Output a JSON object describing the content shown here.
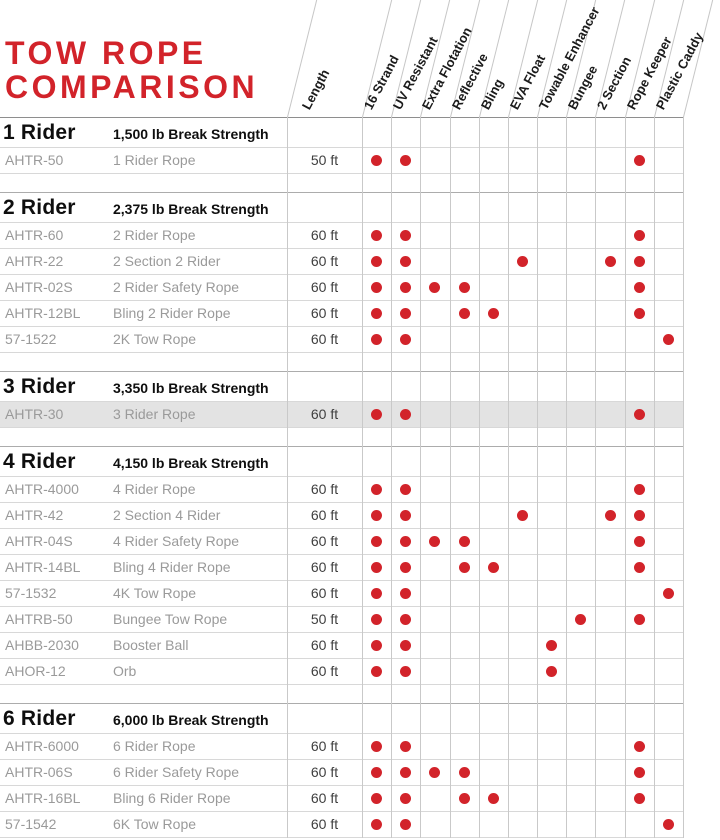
{
  "title": {
    "line1": "TOW ROPE",
    "line2": "COMPARISON"
  },
  "colors": {
    "accent_red": "#D2232A",
    "highlight_row_bg": "#E3E3E3",
    "grid_line": "#C9C9C9",
    "muted_text": "#9A9A9A"
  },
  "chart_data": {
    "type": "table",
    "title": "TOW ROPE COMPARISON",
    "columns": {
      "length_label": "Length",
      "features": [
        "16 Strand",
        "UV Resistant",
        "Extra Flotation",
        "Reflective",
        "Bling",
        "EVA Float",
        "Towable Enhancer",
        "Bungee",
        "2 Section",
        "Rope Keeper",
        "Plastic Caddy"
      ]
    },
    "legend": "red dot = product has feature",
    "sections": [
      {
        "name": "1 Rider",
        "strength": "1,500 lb Break Strength",
        "rows": [
          {
            "code": "AHTR-50",
            "desc": "1 Rider Rope",
            "length": "50 ft",
            "features": [
              "16 Strand",
              "UV Resistant",
              "Rope Keeper"
            ]
          }
        ]
      },
      {
        "name": "2 Rider",
        "strength": "2,375 lb Break Strength",
        "rows": [
          {
            "code": "AHTR-60",
            "desc": "2 Rider Rope",
            "length": "60 ft",
            "features": [
              "16 Strand",
              "UV Resistant",
              "Rope Keeper"
            ]
          },
          {
            "code": "AHTR-22",
            "desc": "2 Section 2 Rider",
            "length": "60 ft",
            "features": [
              "16 Strand",
              "UV Resistant",
              "EVA Float",
              "2 Section",
              "Rope Keeper"
            ]
          },
          {
            "code": "AHTR-02S",
            "desc": "2 Rider Safety Rope",
            "length": "60 ft",
            "features": [
              "16 Strand",
              "UV Resistant",
              "Extra Flotation",
              "Reflective",
              "Rope Keeper"
            ]
          },
          {
            "code": "AHTR-12BL",
            "desc": "Bling 2 Rider Rope",
            "length": "60 ft",
            "features": [
              "16 Strand",
              "UV Resistant",
              "Reflective",
              "Bling",
              "Rope Keeper"
            ]
          },
          {
            "code": "57-1522",
            "desc": "2K Tow Rope",
            "length": "60 ft",
            "features": [
              "16 Strand",
              "UV Resistant",
              "Plastic Caddy"
            ]
          }
        ]
      },
      {
        "name": "3 Rider",
        "strength": "3,350 lb Break Strength",
        "rows": [
          {
            "code": "AHTR-30",
            "desc": "3 Rider Rope",
            "length": "60 ft",
            "features": [
              "16 Strand",
              "UV Resistant",
              "Rope Keeper"
            ],
            "highlighted": true
          }
        ]
      },
      {
        "name": "4 Rider",
        "strength": "4,150 lb Break Strength",
        "rows": [
          {
            "code": "AHTR-4000",
            "desc": "4 Rider Rope",
            "length": "60 ft",
            "features": [
              "16 Strand",
              "UV Resistant",
              "Rope Keeper"
            ]
          },
          {
            "code": "AHTR-42",
            "desc": "2 Section 4 Rider",
            "length": "60 ft",
            "features": [
              "16 Strand",
              "UV Resistant",
              "EVA Float",
              "2 Section",
              "Rope Keeper"
            ]
          },
          {
            "code": "AHTR-04S",
            "desc": "4 Rider Safety Rope",
            "length": "60 ft",
            "features": [
              "16 Strand",
              "UV Resistant",
              "Extra Flotation",
              "Reflective",
              "Rope Keeper"
            ]
          },
          {
            "code": "AHTR-14BL",
            "desc": "Bling 4 Rider Rope",
            "length": "60 ft",
            "features": [
              "16 Strand",
              "UV Resistant",
              "Reflective",
              "Bling",
              "Rope Keeper"
            ]
          },
          {
            "code": "57-1532",
            "desc": "4K Tow Rope",
            "length": "60 ft",
            "features": [
              "16 Strand",
              "UV Resistant",
              "Plastic Caddy"
            ]
          },
          {
            "code": "AHTRB-50",
            "desc": "Bungee Tow Rope",
            "length": "50 ft",
            "features": [
              "16 Strand",
              "UV Resistant",
              "Bungee",
              "Rope Keeper"
            ]
          },
          {
            "code": "AHBB-2030",
            "desc": "Booster Ball",
            "length": "60 ft",
            "features": [
              "16 Strand",
              "UV Resistant",
              "Towable Enhancer"
            ]
          },
          {
            "code": "AHOR-12",
            "desc": "Orb",
            "length": "60 ft",
            "features": [
              "16 Strand",
              "UV Resistant",
              "Towable Enhancer"
            ]
          }
        ]
      },
      {
        "name": "6 Rider",
        "strength": "6,000 lb Break Strength",
        "rows": [
          {
            "code": "AHTR-6000",
            "desc": "6 Rider Rope",
            "length": "60 ft",
            "features": [
              "16 Strand",
              "UV Resistant",
              "Rope Keeper"
            ]
          },
          {
            "code": "AHTR-06S",
            "desc": "6 Rider Safety Rope",
            "length": "60 ft",
            "features": [
              "16 Strand",
              "UV Resistant",
              "Extra Flotation",
              "Reflective",
              "Rope Keeper"
            ]
          },
          {
            "code": "AHTR-16BL",
            "desc": "Bling 6 Rider Rope",
            "length": "60 ft",
            "features": [
              "16 Strand",
              "UV Resistant",
              "Reflective",
              "Bling",
              "Rope Keeper"
            ]
          },
          {
            "code": "57-1542",
            "desc": "6K Tow Rope",
            "length": "60 ft",
            "features": [
              "16 Strand",
              "UV Resistant",
              "Plastic Caddy"
            ]
          }
        ]
      }
    ]
  }
}
